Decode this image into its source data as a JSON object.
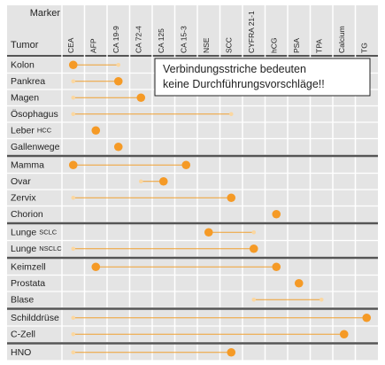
{
  "header": {
    "marker": "Marker",
    "tumor": "Tumor"
  },
  "markers": [
    "CEA",
    "AFP",
    "CA 19-9",
    "CA 72-4",
    "CA 125",
    "CA 15-3",
    "NSE",
    "SCC",
    "CYFRA 21-1",
    "hCG",
    "PSA",
    "TPA",
    "Calcium",
    "TG"
  ],
  "note": {
    "lines": [
      "Verbindungsstriche bedeuten",
      "keine Durchführungsvorschläge!!"
    ]
  },
  "groups": [
    {
      "rows": [
        {
          "tumor": "Kolon",
          "major": [
            "CEA"
          ],
          "minor": [
            "CA 19-9"
          ]
        },
        {
          "tumor": "Pankrea",
          "major": [
            "CA 19-9"
          ],
          "minor": [
            "CEA"
          ]
        },
        {
          "tumor": "Magen",
          "major": [
            "CA 72-4"
          ],
          "minor": [
            "CEA"
          ]
        },
        {
          "tumor": "Ösophagus",
          "major": [],
          "minor": [
            "CEA",
            "SCC"
          ]
        },
        {
          "tumor": "Leber",
          "qualifier": "HCC",
          "major": [
            "AFP"
          ],
          "minor": []
        },
        {
          "tumor": "Gallenwege",
          "major": [
            "CA 19-9"
          ],
          "minor": []
        }
      ]
    },
    {
      "rows": [
        {
          "tumor": "Mamma",
          "major": [
            "CEA",
            "CA 15-3"
          ],
          "minor": []
        },
        {
          "tumor": "Ovar",
          "major": [
            "CA 125"
          ],
          "minor": [
            "CA 72-4"
          ]
        },
        {
          "tumor": "Zervix",
          "major": [
            "SCC"
          ],
          "minor": [
            "CEA"
          ]
        },
        {
          "tumor": "Chorion",
          "major": [
            "hCG"
          ],
          "minor": []
        }
      ]
    },
    {
      "rows": [
        {
          "tumor": "Lunge",
          "qualifier": "SCLC",
          "major": [
            "NSE"
          ],
          "minor": [
            "CYFRA 21-1"
          ]
        },
        {
          "tumor": "Lunge",
          "qualifier": "NSCLC",
          "major": [
            "CYFRA 21-1"
          ],
          "minor": [
            "CEA"
          ]
        }
      ]
    },
    {
      "rows": [
        {
          "tumor": "Keimzell",
          "major": [
            "AFP",
            "hCG"
          ],
          "minor": []
        },
        {
          "tumor": "Prostata",
          "major": [
            "PSA"
          ],
          "minor": []
        },
        {
          "tumor": "Blase",
          "major": [],
          "minor": [
            "CYFRA 21-1",
            "TPA"
          ]
        }
      ]
    },
    {
      "rows": [
        {
          "tumor": "Schilddrüse",
          "major": [
            "TG"
          ],
          "minor": [
            "CEA"
          ]
        },
        {
          "tumor": "C-Zell",
          "major": [
            "Calcium"
          ],
          "minor": [
            "CEA"
          ]
        }
      ]
    },
    {
      "rows": [
        {
          "tumor": "HNO",
          "major": [
            "SCC"
          ],
          "minor": [
            "CEA"
          ]
        }
      ]
    }
  ]
}
